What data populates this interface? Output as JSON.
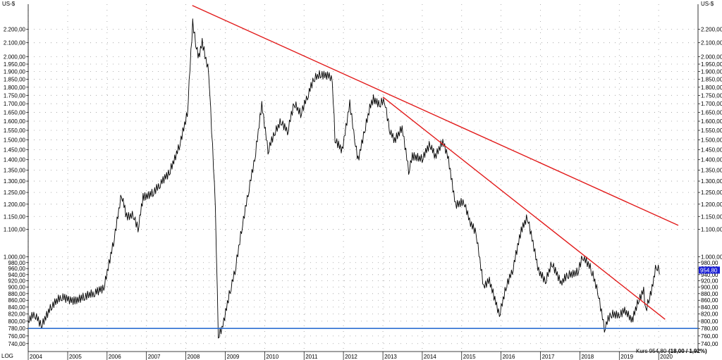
{
  "chart_data": {
    "type": "line",
    "y_scale": "log",
    "scale_mode_label": "LOG",
    "y_unit_left": "US-$",
    "y_unit_right": "US-$",
    "ylim": [
      720,
      2400
    ],
    "xlim": [
      "2004-01-01",
      "2020-12-31"
    ],
    "grid": true,
    "y_ticks": [
      {
        "value": 740,
        "label": "740,00"
      },
      {
        "value": 760,
        "label": "760,00"
      },
      {
        "value": 780,
        "label": "780,00"
      },
      {
        "value": 800,
        "label": "800,00"
      },
      {
        "value": 820,
        "label": "820,00"
      },
      {
        "value": 840,
        "label": "840,00"
      },
      {
        "value": 860,
        "label": "860,00"
      },
      {
        "value": 880,
        "label": "880,00"
      },
      {
        "value": 900,
        "label": "900,00"
      },
      {
        "value": 920,
        "label": "920,00"
      },
      {
        "value": 940,
        "label": "940,00"
      },
      {
        "value": 960,
        "label": "960,00"
      },
      {
        "value": 980,
        "label": "980,00"
      },
      {
        "value": 1000,
        "label": "1.000,00"
      },
      {
        "value": 1100,
        "label": "1.100,00"
      },
      {
        "value": 1150,
        "label": "1.150,00"
      },
      {
        "value": 1200,
        "label": "1.200,00"
      },
      {
        "value": 1250,
        "label": "1.250,00"
      },
      {
        "value": 1300,
        "label": "1.300,00"
      },
      {
        "value": 1350,
        "label": "1.350,00"
      },
      {
        "value": 1400,
        "label": "1.400,00"
      },
      {
        "value": 1450,
        "label": "1.450,00"
      },
      {
        "value": 1500,
        "label": "1.500,00"
      },
      {
        "value": 1550,
        "label": "1.550,00"
      },
      {
        "value": 1600,
        "label": "1.600,00"
      },
      {
        "value": 1650,
        "label": "1.650,00"
      },
      {
        "value": 1700,
        "label": "1.700,00"
      },
      {
        "value": 1750,
        "label": "1.750,00"
      },
      {
        "value": 1800,
        "label": "1.800,00"
      },
      {
        "value": 1850,
        "label": "1.850,00"
      },
      {
        "value": 1900,
        "label": "1.900,00"
      },
      {
        "value": 1950,
        "label": "1.950,00"
      },
      {
        "value": 2000,
        "label": "2.000,00"
      },
      {
        "value": 2100,
        "label": "2.100,00"
      },
      {
        "value": 2200,
        "label": "2.200,00"
      }
    ],
    "x_ticks": [
      {
        "date": "2004-01-01",
        "label": "2004"
      },
      {
        "date": "2005-01-01",
        "label": "2005"
      },
      {
        "date": "2006-01-01",
        "label": "2006"
      },
      {
        "date": "2007-01-01",
        "label": "2007"
      },
      {
        "date": "2008-01-01",
        "label": "2008"
      },
      {
        "date": "2009-01-01",
        "label": "2009"
      },
      {
        "date": "2010-01-01",
        "label": "2010"
      },
      {
        "date": "2011-01-01",
        "label": "2011"
      },
      {
        "date": "2012-01-01",
        "label": "2012"
      },
      {
        "date": "2013-01-01",
        "label": "2013"
      },
      {
        "date": "2014-01-01",
        "label": "2014"
      },
      {
        "date": "2015-01-01",
        "label": "2015"
      },
      {
        "date": "2016-01-01",
        "label": "2016"
      },
      {
        "date": "2017-01-01",
        "label": "2017"
      },
      {
        "date": "2018-01-01",
        "label": "2018"
      },
      {
        "date": "2019-01-01",
        "label": "2019"
      },
      {
        "date": "2020-01-01",
        "label": "2020"
      }
    ],
    "series": [
      {
        "type": "price",
        "color": "#000000",
        "x": [
          "2004-01-01",
          "2004-03-01",
          "2004-05-01",
          "2004-08-01",
          "2004-11-01",
          "2005-03-01",
          "2005-06-01",
          "2005-09-01",
          "2005-12-01",
          "2006-03-01",
          "2006-05-15",
          "2006-07-01",
          "2006-09-01",
          "2006-10-15",
          "2006-12-01",
          "2007-03-01",
          "2007-05-01",
          "2007-08-01",
          "2007-11-01",
          "2008-01-15",
          "2008-03-05",
          "2008-04-01",
          "2008-05-01",
          "2008-06-01",
          "2008-08-01",
          "2008-10-01",
          "2008-10-28",
          "2008-12-01",
          "2009-02-15",
          "2009-04-01",
          "2009-06-01",
          "2009-08-01",
          "2009-10-01",
          "2009-12-05",
          "2010-02-01",
          "2010-04-01",
          "2010-06-01",
          "2010-08-01",
          "2010-10-01",
          "2010-12-01",
          "2011-02-01",
          "2011-04-01",
          "2011-06-01",
          "2011-08-22",
          "2011-09-20",
          "2011-10-15",
          "2011-12-20",
          "2012-02-29",
          "2012-04-15",
          "2012-05-15",
          "2012-07-15",
          "2012-09-01",
          "2012-10-05",
          "2012-12-01",
          "2013-01-15",
          "2013-03-01",
          "2013-04-20",
          "2013-06-28",
          "2013-08-28",
          "2013-10-01",
          "2013-12-31",
          "2014-03-14",
          "2014-05-01",
          "2014-07-10",
          "2014-09-01",
          "2014-11-05",
          "2015-01-22",
          "2015-03-15",
          "2015-05-15",
          "2015-07-24",
          "2015-09-15",
          "2015-12-17",
          "2016-02-15",
          "2016-04-15",
          "2016-07-06",
          "2016-09-01",
          "2016-12-15",
          "2017-02-15",
          "2017-04-15",
          "2017-07-10",
          "2017-09-08",
          "2017-12-12",
          "2018-01-25",
          "2018-04-15",
          "2018-06-15",
          "2018-08-16",
          "2018-10-15",
          "2018-12-31",
          "2019-02-20",
          "2019-04-30",
          "2019-06-25",
          "2019-08-15",
          "2019-09-04",
          "2019-10-01",
          "2019-11-01",
          "2019-12-10",
          "2020-01-08"
        ],
        "y": [
          800,
          820,
          790,
          840,
          870,
          860,
          870,
          880,
          900,
          1050,
          1240,
          1150,
          1160,
          1100,
          1230,
          1250,
          1280,
          1340,
          1470,
          1640,
          2250,
          2100,
          2000,
          2100,
          1900,
          1200,
          760,
          780,
          890,
          950,
          1100,
          1250,
          1400,
          1700,
          1450,
          1530,
          1600,
          1550,
          1700,
          1640,
          1750,
          1850,
          1880,
          1880,
          1850,
          1500,
          1450,
          1700,
          1500,
          1400,
          1550,
          1670,
          1730,
          1700,
          1720,
          1560,
          1500,
          1560,
          1350,
          1420,
          1400,
          1480,
          1420,
          1490,
          1400,
          1200,
          1210,
          1130,
          1090,
          900,
          920,
          820,
          900,
          950,
          1100,
          1150,
          950,
          920,
          980,
          910,
          940,
          950,
          1000,
          960,
          890,
          780,
          820,
          820,
          830,
          800,
          860,
          890,
          830,
          860,
          900,
          970,
          950
        ]
      },
      {
        "type": "trendline",
        "color": "#e21b1b",
        "x": [
          "2008-03-01",
          "2020-07-01"
        ],
        "y": [
          2390,
          1115
        ]
      },
      {
        "type": "trendline",
        "color": "#e21b1b",
        "x": [
          "2013-01-01",
          "2020-03-01"
        ],
        "y": [
          1740,
          805
        ]
      },
      {
        "type": "horizontal_line",
        "color": "#2e6fd2",
        "x": [
          "2004-01-01",
          "2020-12-31"
        ],
        "y": [
          780,
          780
        ]
      }
    ],
    "last_price": {
      "label": "954,80",
      "value": 954.8,
      "color": "#1a1fd6"
    },
    "footer_text": {
      "label": "Kurs 954,80",
      "change": "(18,00 / 1,92%)"
    }
  }
}
